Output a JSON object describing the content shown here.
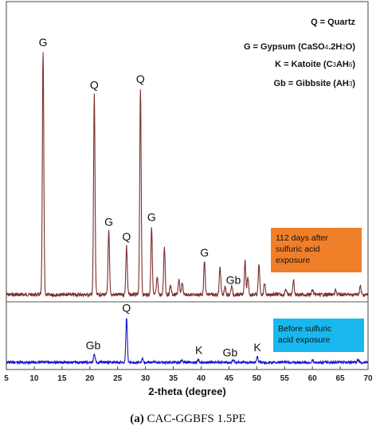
{
  "chart_data": {
    "type": "line",
    "xlabel": "2-theta (degree)",
    "xlim": [
      5,
      70
    ],
    "xticks": [
      5,
      10,
      15,
      20,
      25,
      30,
      35,
      40,
      45,
      50,
      55,
      60,
      65,
      70
    ],
    "ylabel": "",
    "series": [
      {
        "name": "112 days after sulfuric acid exposure",
        "color": "#7b2f2f",
        "peaks": [
          {
            "x": 11.6,
            "h": 1.0
          },
          {
            "x": 20.8,
            "h": 0.825
          },
          {
            "x": 23.4,
            "h": 0.26
          },
          {
            "x": 26.6,
            "h": 0.2
          },
          {
            "x": 29.1,
            "h": 0.85
          },
          {
            "x": 31.1,
            "h": 0.28
          },
          {
            "x": 32.1,
            "h": 0.07
          },
          {
            "x": 33.4,
            "h": 0.2
          },
          {
            "x": 34.5,
            "h": 0.04
          },
          {
            "x": 36.0,
            "h": 0.06
          },
          {
            "x": 36.6,
            "h": 0.05
          },
          {
            "x": 40.6,
            "h": 0.135
          },
          {
            "x": 43.4,
            "h": 0.115
          },
          {
            "x": 44.3,
            "h": 0.03
          },
          {
            "x": 45.5,
            "h": 0.035
          },
          {
            "x": 47.9,
            "h": 0.14
          },
          {
            "x": 48.4,
            "h": 0.07
          },
          {
            "x": 50.4,
            "h": 0.125
          },
          {
            "x": 51.4,
            "h": 0.05
          },
          {
            "x": 55.2,
            "h": 0.025
          },
          {
            "x": 56.6,
            "h": 0.06
          },
          {
            "x": 60.0,
            "h": 0.02
          },
          {
            "x": 64.2,
            "h": 0.02
          },
          {
            "x": 68.6,
            "h": 0.035
          }
        ]
      },
      {
        "name": "Before sulfuric acid exposure",
        "color": "#1515d0",
        "peaks": [
          {
            "x": 20.8,
            "h": 0.05
          },
          {
            "x": 26.6,
            "h": 0.24
          },
          {
            "x": 29.5,
            "h": 0.02
          },
          {
            "x": 36.5,
            "h": 0.015
          },
          {
            "x": 39.5,
            "h": 0.015
          },
          {
            "x": 45.8,
            "h": 0.012
          },
          {
            "x": 50.1,
            "h": 0.03
          },
          {
            "x": 60.0,
            "h": 0.012
          },
          {
            "x": 68.2,
            "h": 0.015
          }
        ]
      }
    ],
    "peak_labels": [
      {
        "series": 0,
        "x": 11.6,
        "text": "G"
      },
      {
        "series": 0,
        "x": 20.8,
        "text": "Q"
      },
      {
        "series": 0,
        "x": 23.4,
        "text": "G"
      },
      {
        "series": 0,
        "x": 26.6,
        "text": "Q"
      },
      {
        "series": 0,
        "x": 29.1,
        "text": "Q"
      },
      {
        "series": 0,
        "x": 31.1,
        "text": "G"
      },
      {
        "series": 0,
        "x": 40.6,
        "text": "G"
      },
      {
        "series": 0,
        "x": 45.8,
        "text": "Gb"
      },
      {
        "series": 1,
        "x": 20.6,
        "text": "Gb"
      },
      {
        "series": 1,
        "x": 26.6,
        "text": "Q"
      },
      {
        "series": 1,
        "x": 39.6,
        "text": "K"
      },
      {
        "series": 1,
        "x": 45.2,
        "text": "Gb"
      },
      {
        "series": 1,
        "x": 50.1,
        "text": "K"
      }
    ],
    "legend": [
      {
        "label": "Q = Quartz"
      },
      {
        "label": "G = Gypsum (CaSO4.2H2O)"
      },
      {
        "label": "K = Katoite (C3AH6)"
      },
      {
        "label": "Gb = Gibbsite (AH3)"
      }
    ],
    "legend_position": "top-right",
    "annotations": [
      {
        "label": "112 days after sulfuric acid exposure",
        "lines": [
          "112 days after",
          "sulfuric acid",
          "exposure"
        ],
        "color": "#f07f2a"
      },
      {
        "label": "Before sulfuric acid exposure",
        "lines": [
          "Before sulfuric",
          "acid exposure"
        ],
        "color": "#18b8ee"
      }
    ]
  },
  "caption": {
    "label": "(a)",
    "text": "CAC-GGBFS 1.5PE"
  }
}
